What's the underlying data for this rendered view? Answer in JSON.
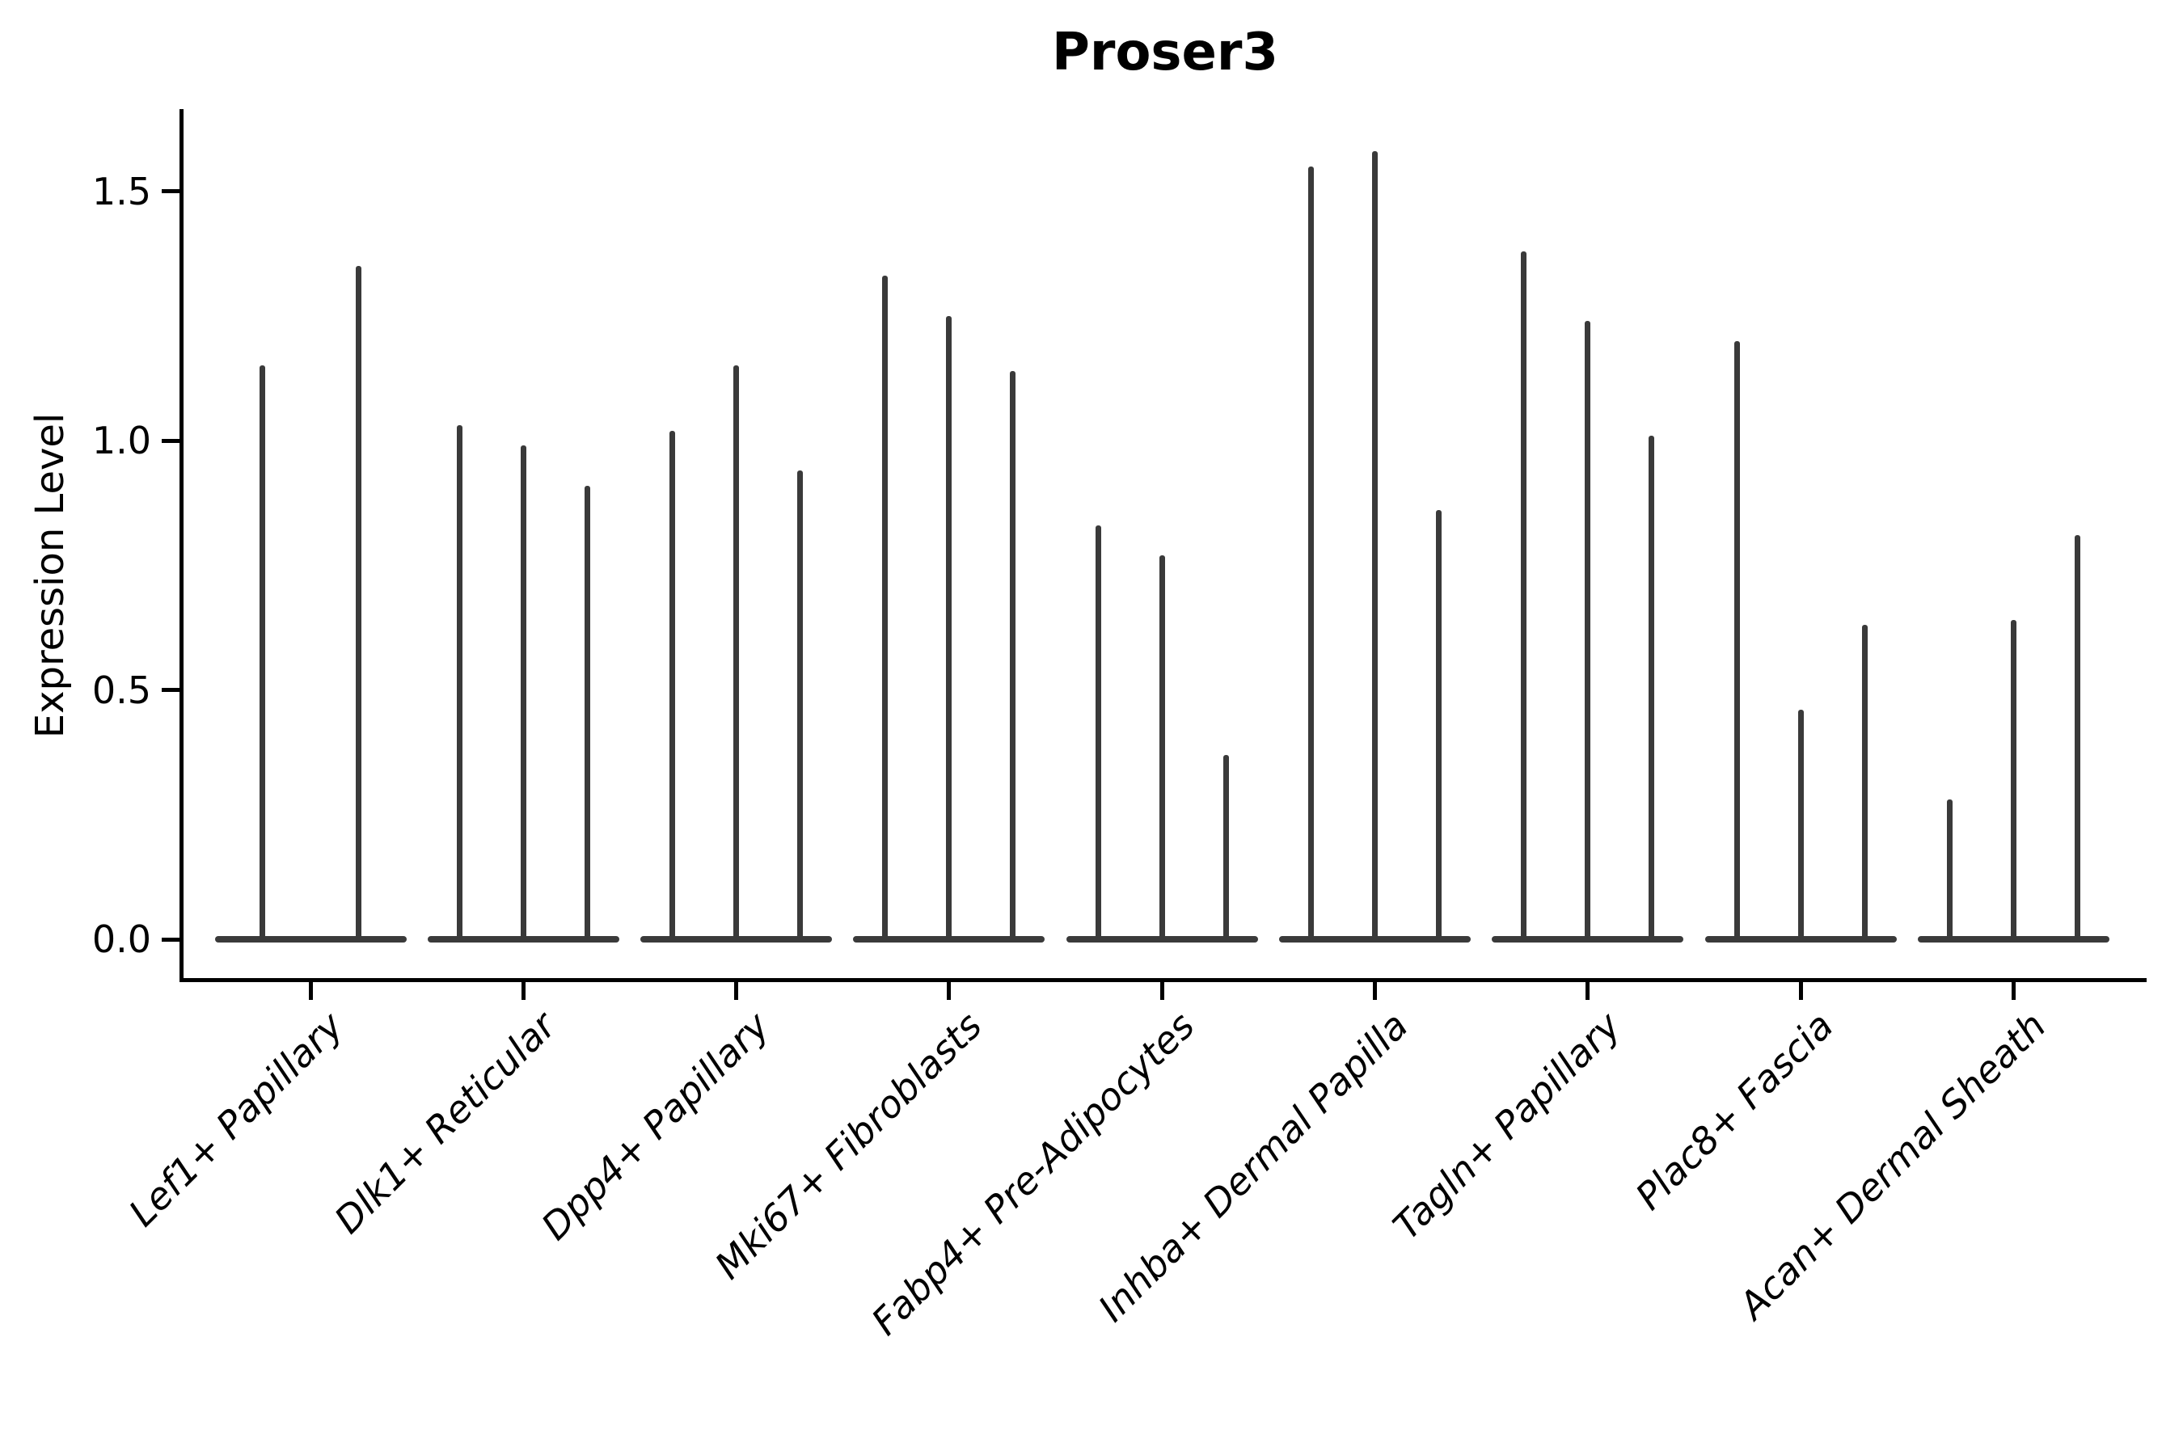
{
  "title": "Proser3",
  "axes": {
    "ylabel": "Expression Level",
    "ytick_labels": [
      "0.0",
      "0.5",
      "1.0",
      "1.5"
    ]
  },
  "chart_data": {
    "type": "violin",
    "title": "Proser3",
    "xlabel": "",
    "ylabel": "Expression Level",
    "yticks": [
      0.0,
      0.5,
      1.0,
      1.5
    ],
    "ylim": [
      -0.08,
      1.66
    ],
    "grid": false,
    "legend": null,
    "note": "Seurat-style violin plot of Proser3 expression per fibroblast subtype; each group holds 2-3 extremely thin violins (spikes) rising from a flat base at expression 0. Values are the top (max expression) of each spike, left to right.",
    "categories": [
      "Lef1+ Papillary",
      "Dlk1+ Reticular",
      "Dpp4+ Papillary",
      "Mki67+ Fibroblasts",
      "Fabp4+ Pre-Adipocytes",
      "Inhba+ Dermal Papilla",
      "Tagln+ Papillary",
      "Plac8+ Fascia",
      "Acan+ Dermal Sheath"
    ],
    "groups": [
      {
        "category": "Lef1+ Papillary",
        "violin_max": [
          1.15,
          1.35
        ]
      },
      {
        "category": "Dlk1+ Reticular",
        "violin_max": [
          1.03,
          0.99,
          0.91
        ]
      },
      {
        "category": "Dpp4+ Papillary",
        "violin_max": [
          1.02,
          1.15,
          0.94
        ]
      },
      {
        "category": "Mki67+ Fibroblasts",
        "violin_max": [
          1.33,
          1.25,
          1.14
        ]
      },
      {
        "category": "Fabp4+ Pre-Adipocytes",
        "violin_max": [
          0.83,
          0.77,
          0.37
        ]
      },
      {
        "category": "Inhba+ Dermal Papilla",
        "violin_max": [
          1.55,
          1.58,
          0.86
        ]
      },
      {
        "category": "Tagln+ Papillary",
        "violin_max": [
          1.38,
          1.24,
          1.01
        ]
      },
      {
        "category": "Plac8+ Fascia",
        "violin_max": [
          1.2,
          0.46,
          0.63
        ]
      },
      {
        "category": "Acan+ Dermal Sheath",
        "violin_max": [
          0.28,
          0.64,
          0.81
        ]
      }
    ],
    "colors": {
      "violin": "#3a3a3a",
      "spine": "#000000",
      "text": "#000000",
      "background": "#ffffff"
    }
  }
}
